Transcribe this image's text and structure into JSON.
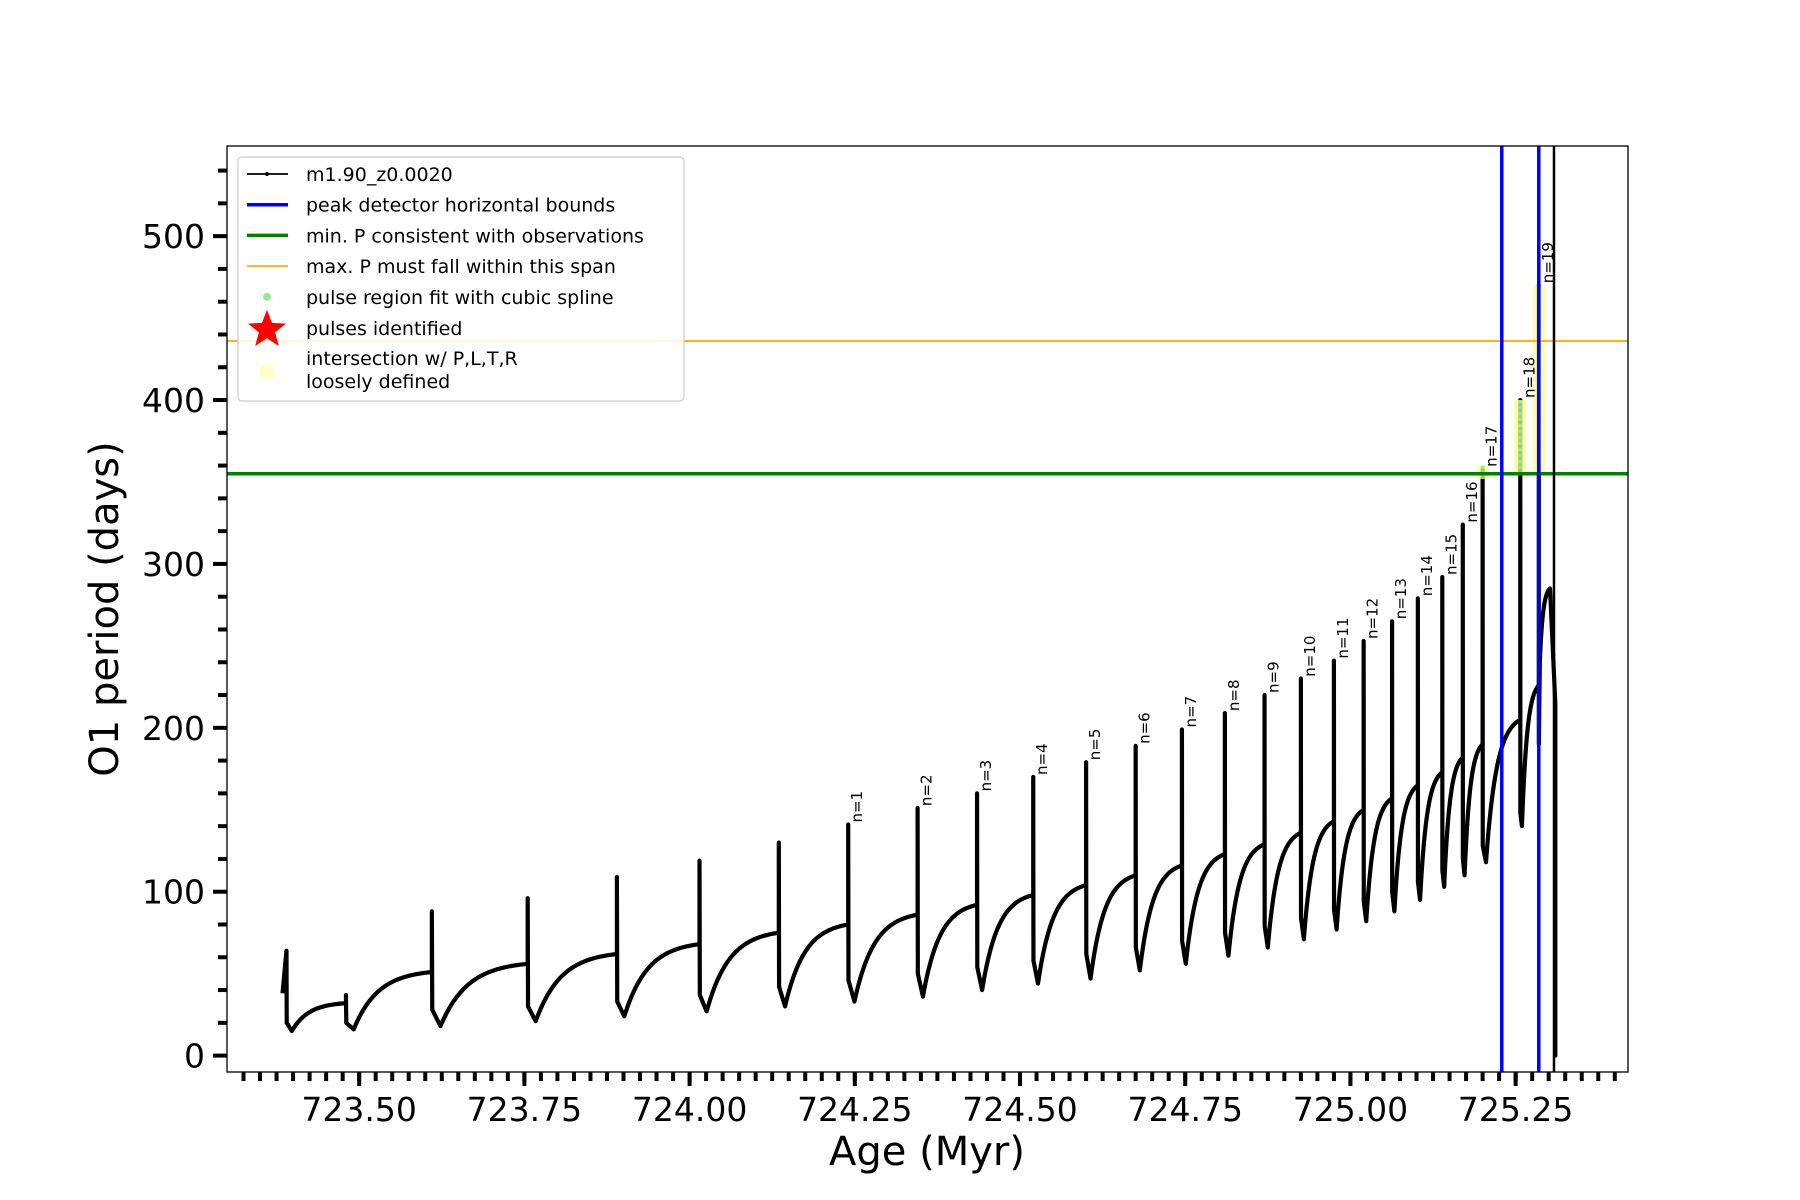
{
  "chart_data": {
    "type": "line",
    "xlabel": "Age (Myr)",
    "ylabel": "O1 period (days)",
    "xlim": [
      723.3,
      725.42
    ],
    "ylim": [
      -10,
      555
    ],
    "x_ticks": [
      723.5,
      723.75,
      724.0,
      724.25,
      724.5,
      724.75,
      725.0,
      725.25
    ],
    "x_tick_labels": [
      "723.50",
      "723.75",
      "724.00",
      "724.25",
      "724.50",
      "724.75",
      "725.00",
      "725.25"
    ],
    "y_ticks": [
      0,
      100,
      200,
      300,
      400,
      500
    ],
    "y_tick_labels": [
      "0",
      "100",
      "200",
      "300",
      "400",
      "500"
    ],
    "grid": false,
    "legend_position": "top-left",
    "legend": [
      {
        "label": "m1.90_z0.0020",
        "kind": "line-marker",
        "color": "#000000"
      },
      {
        "label": "peak detector horizontal bounds",
        "kind": "line",
        "color": "#0000ff"
      },
      {
        "label": "min. P consistent with observations",
        "kind": "line",
        "color": "#008000"
      },
      {
        "label": "max. P must fall within this span",
        "kind": "thin-line",
        "color": "#ffa500"
      },
      {
        "label": "pulse region fit with cubic spline",
        "kind": "dot",
        "color": "#90ee90"
      },
      {
        "label": "pulses identified",
        "kind": "star",
        "color": "#ff0000"
      },
      {
        "label": "intersection w/ P,L,T,R",
        "label2": "loosely defined",
        "kind": "big-dot",
        "color": "#ffffcc"
      }
    ],
    "hlines": [
      {
        "name": "min. P consistent with observations",
        "y": 355,
        "color": "#008000"
      },
      {
        "name": "max. P must fall within this span",
        "y": 436,
        "color": "#ffa500"
      }
    ],
    "vlines": [
      {
        "name": "peak detector horizontal bounds",
        "x": 725.229,
        "color": "#0000ff"
      },
      {
        "name": "peak detector horizontal bounds",
        "x": 725.285,
        "color": "#0000ff"
      },
      {
        "name": "m1.90_z0.0020",
        "x": 725.308,
        "color": "#000000"
      }
    ],
    "series": {
      "name": "m1.90_z0.0020",
      "color": "#000000",
      "start": {
        "x": 723.384,
        "y": 38
      },
      "cycles": [
        {
          "t": 723.39,
          "spike": 64,
          "dip": 20,
          "floor": 15,
          "next": 723.48,
          "pre": 32,
          "mark": null
        },
        {
          "t": 723.48,
          "spike": 37,
          "dip": 20,
          "floor": 16,
          "next": 723.61,
          "pre": 51,
          "mark": null
        },
        {
          "t": 723.61,
          "spike": 88,
          "dip": 28,
          "floor": 18,
          "next": 723.755,
          "pre": 56,
          "mark": null
        },
        {
          "t": 723.755,
          "spike": 96,
          "dip": 30,
          "floor": 21,
          "next": 723.89,
          "pre": 62,
          "mark": null
        },
        {
          "t": 723.89,
          "spike": 109,
          "dip": 33,
          "floor": 24,
          "next": 724.015,
          "pre": 68,
          "mark": null
        },
        {
          "t": 724.015,
          "spike": 119,
          "dip": 37,
          "floor": 27,
          "next": 724.135,
          "pre": 75,
          "mark": null
        },
        {
          "t": 724.135,
          "spike": 130,
          "dip": 42,
          "floor": 30,
          "next": 724.24,
          "pre": 80,
          "mark": null
        },
        {
          "t": 724.24,
          "spike": 141,
          "dip": 46,
          "floor": 33,
          "next": 724.345,
          "pre": 86,
          "mark": "n=1"
        },
        {
          "t": 724.345,
          "spike": 151,
          "dip": 50,
          "floor": 36,
          "next": 724.435,
          "pre": 92,
          "mark": "n=2"
        },
        {
          "t": 724.435,
          "spike": 160,
          "dip": 54,
          "floor": 40,
          "next": 724.52,
          "pre": 98,
          "mark": "n=3"
        },
        {
          "t": 724.52,
          "spike": 170,
          "dip": 58,
          "floor": 44,
          "next": 724.6,
          "pre": 104,
          "mark": "n=4"
        },
        {
          "t": 724.6,
          "spike": 179,
          "dip": 62,
          "floor": 47,
          "next": 724.675,
          "pre": 110,
          "mark": "n=5"
        },
        {
          "t": 724.675,
          "spike": 189,
          "dip": 66,
          "floor": 52,
          "next": 724.745,
          "pre": 116,
          "mark": "n=6"
        },
        {
          "t": 724.745,
          "spike": 199,
          "dip": 70,
          "floor": 56,
          "next": 724.81,
          "pre": 123,
          "mark": "n=7"
        },
        {
          "t": 724.81,
          "spike": 209,
          "dip": 75,
          "floor": 61,
          "next": 724.87,
          "pre": 129,
          "mark": "n=8"
        },
        {
          "t": 724.87,
          "spike": 220,
          "dip": 79,
          "floor": 66,
          "next": 724.925,
          "pre": 136,
          "mark": "n=9"
        },
        {
          "t": 724.925,
          "spike": 230,
          "dip": 84,
          "floor": 71,
          "next": 724.975,
          "pre": 143,
          "mark": "n=10"
        },
        {
          "t": 724.975,
          "spike": 241,
          "dip": 89,
          "floor": 77,
          "next": 725.02,
          "pre": 150,
          "mark": "n=11"
        },
        {
          "t": 725.02,
          "spike": 253,
          "dip": 94,
          "floor": 82,
          "next": 725.063,
          "pre": 157,
          "mark": "n=12"
        },
        {
          "t": 725.063,
          "spike": 265,
          "dip": 100,
          "floor": 88,
          "next": 725.102,
          "pre": 165,
          "mark": "n=13"
        },
        {
          "t": 725.102,
          "spike": 279,
          "dip": 106,
          "floor": 95,
          "next": 725.139,
          "pre": 173,
          "mark": "n=14"
        },
        {
          "t": 725.139,
          "spike": 292,
          "dip": 113,
          "floor": 103,
          "next": 725.17,
          "pre": 182,
          "mark": "n=15"
        },
        {
          "t": 725.17,
          "spike": 324,
          "dip": 120,
          "floor": 110,
          "next": 725.2,
          "pre": 190,
          "mark": "n=16"
        },
        {
          "t": 725.2,
          "spike": 358,
          "dip": 128,
          "floor": 118,
          "next": 725.257,
          "pre": 205,
          "mark": "n=17"
        },
        {
          "t": 725.257,
          "spike": 400,
          "dip": 148,
          "floor": 140,
          "next": 725.285,
          "pre": 226,
          "mark": "n=18"
        },
        {
          "t": 725.285,
          "spike": 470,
          "dip": 190,
          "floor": 240,
          "next": 725.302,
          "pre": 285,
          "mark": "n=19"
        }
      ],
      "end": [
        {
          "x": 725.31,
          "y": 215
        },
        {
          "x": 725.31,
          "y": 0
        },
        {
          "x": 725.31,
          "y": 135
        }
      ]
    },
    "pulse_highlights": [
      {
        "label": "n=17",
        "x": 725.2,
        "y_from": 352,
        "y_to": 360
      },
      {
        "label": "n=18",
        "x": 725.257,
        "y_from": 355,
        "y_to": 400
      },
      {
        "label": "n=19",
        "x": 725.285,
        "y_from": 355,
        "y_to": 470
      }
    ]
  }
}
